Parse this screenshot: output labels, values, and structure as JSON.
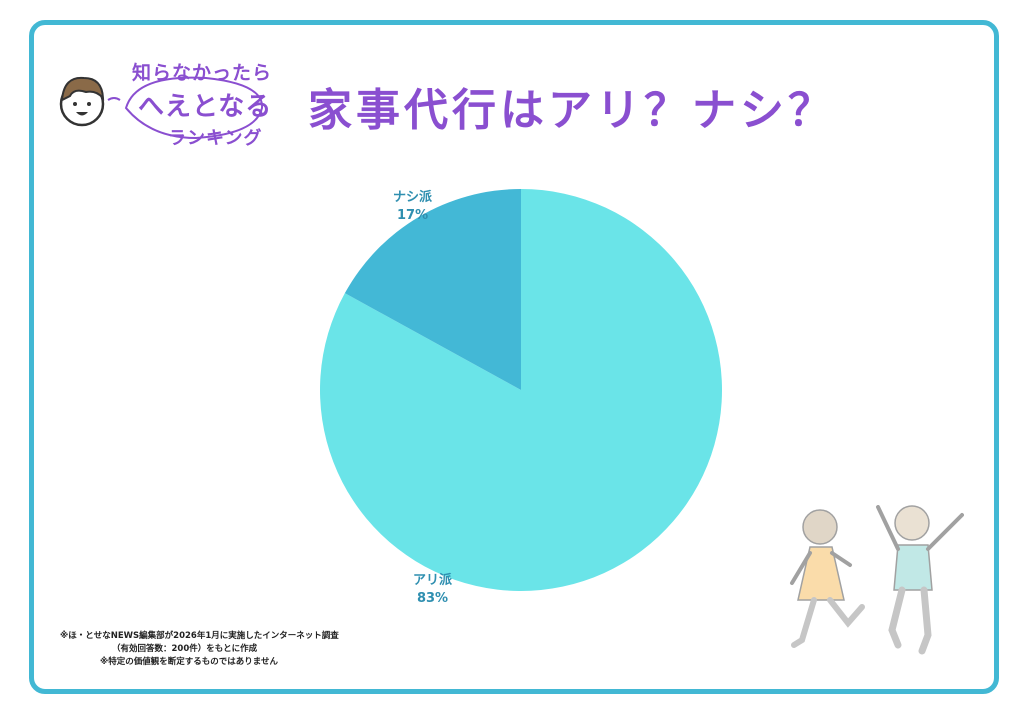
{
  "logo": {
    "line1": "知らなかったら",
    "line2": "へえとなる",
    "line3": "ランキング"
  },
  "title": "家事代行はアリ？ナシ？",
  "chart_data": {
    "type": "pie",
    "categories": [
      "アリ派",
      "ナシ派"
    ],
    "values": [
      83,
      17
    ],
    "value_labels": [
      "83%",
      "17%"
    ],
    "colors": [
      "#6ae4e8",
      "#43b8d6"
    ],
    "start_angle": "12 o'clock, clockwise"
  },
  "notes": [
    "※ほ・とせなNEWS編集部が2026年1月に実施したインターネット調査",
    "（有効回答数：200件）をもとに作成",
    "※特定の価値観を断定するものではありません"
  ],
  "colors": {
    "frame": "#42b8d4",
    "title": "#8a4fd0",
    "label": "#2f8fb0"
  }
}
